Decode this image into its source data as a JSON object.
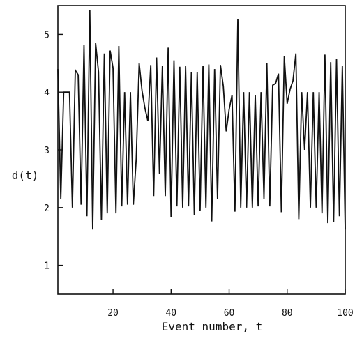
{
  "chart_data": {
    "type": "line",
    "title": "",
    "xlabel": "Event number, t",
    "ylabel": "d(t)",
    "xlim": [
      1,
      100
    ],
    "ylim": [
      0.5,
      5.5
    ],
    "grid": false,
    "legend": "none",
    "x_ticks": [
      20,
      40,
      60,
      80,
      100
    ],
    "y_ticks": [
      1,
      2,
      3,
      4,
      5
    ],
    "line_color": "#111111",
    "series": [
      {
        "x": [
          1,
          2,
          3,
          4,
          5,
          6,
          7,
          8,
          9,
          10,
          11,
          12,
          13,
          14,
          15,
          16,
          17,
          18,
          19,
          20,
          21,
          22,
          23,
          24,
          25,
          26,
          27,
          28,
          29,
          30,
          31,
          32,
          33,
          34,
          35,
          36,
          37,
          38,
          39,
          40,
          41,
          42,
          43,
          44,
          45,
          46,
          47,
          48,
          49,
          50,
          51,
          52,
          53,
          54,
          55,
          56,
          57,
          58,
          59,
          60,
          61,
          62,
          63,
          64,
          65,
          66,
          67,
          68,
          69,
          70,
          71,
          72,
          73,
          74,
          75,
          76,
          77,
          78,
          79,
          80,
          81,
          82,
          83,
          84,
          85,
          86,
          87,
          88,
          89,
          90,
          91,
          92,
          93,
          94,
          95,
          96,
          97,
          98,
          99,
          100
        ],
        "values": [
          4.4,
          2.15,
          4.0,
          4.0,
          4.0,
          2.0,
          4.38,
          4.3,
          2.05,
          4.82,
          1.85,
          5.42,
          1.62,
          4.85,
          4.35,
          1.78,
          4.67,
          1.9,
          4.72,
          4.42,
          1.9,
          4.8,
          2.02,
          4.0,
          2.05,
          4.0,
          2.05,
          2.85,
          4.5,
          4.02,
          3.72,
          3.5,
          4.47,
          2.2,
          4.6,
          2.58,
          4.45,
          2.2,
          4.77,
          1.83,
          4.55,
          2.02,
          4.44,
          2.0,
          4.45,
          2.02,
          4.35,
          1.87,
          4.35,
          1.95,
          4.45,
          2.0,
          4.48,
          1.76,
          4.4,
          2.15,
          4.47,
          4.1,
          3.32,
          3.7,
          3.95,
          1.93,
          5.27,
          2.0,
          4.0,
          2.0,
          4.0,
          2.0,
          3.95,
          2.02,
          4.0,
          2.15,
          4.5,
          2.02,
          4.12,
          4.15,
          4.32,
          1.92,
          4.62,
          3.8,
          4.05,
          4.2,
          4.67,
          1.8,
          4.0,
          3.0,
          4.0,
          2.0,
          4.0,
          2.0,
          4.0,
          1.9,
          4.65,
          1.73,
          4.52,
          1.75,
          4.57,
          1.85,
          4.45,
          1.62
        ]
      }
    ]
  }
}
